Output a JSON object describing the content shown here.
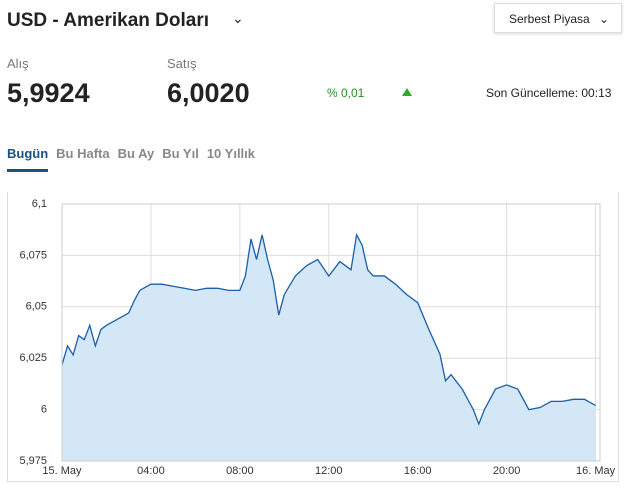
{
  "header": {
    "title": "USD - Amerikan Doları",
    "market": "Serbest Piyasa"
  },
  "quotes": {
    "buy_label": "Alış",
    "buy": "5,9924",
    "sell_label": "Satış",
    "sell": "6,0020",
    "change": "% 0,01",
    "updated": "Son Güncelleme: 00:13"
  },
  "tabs": [
    "Bugün",
    "Bu Hafta",
    "Bu Ay",
    "Bu Yıl",
    "10 Yıllık"
  ],
  "chart_data": {
    "type": "area",
    "color": "#1a5fa8",
    "fill": "#d4e7f6",
    "grid": true,
    "x": [
      0,
      0.25,
      0.5,
      0.75,
      1,
      1.25,
      1.5,
      1.75,
      2,
      2.5,
      3,
      3.25,
      3.5,
      4,
      4.5,
      5,
      5.5,
      6,
      6.5,
      7,
      7.5,
      8,
      8.25,
      8.5,
      8.75,
      9,
      9.25,
      9.5,
      9.75,
      10,
      10.5,
      11,
      11.5,
      12,
      12.5,
      13,
      13.25,
      13.5,
      13.75,
      14,
      14.5,
      15,
      15.5,
      16,
      16.5,
      17,
      17.25,
      17.5,
      18,
      18.5,
      18.75,
      19,
      19.5,
      20,
      20.5,
      21,
      21.5,
      22,
      22.5,
      23,
      23.5,
      24
    ],
    "values": [
      6.0217,
      6.031,
      6.0266,
      6.036,
      6.034,
      6.041,
      6.031,
      6.039,
      6.041,
      6.044,
      6.047,
      6.053,
      6.058,
      6.061,
      6.061,
      6.06,
      6.059,
      6.058,
      6.059,
      6.059,
      6.058,
      6.058,
      6.065,
      6.083,
      6.073,
      6.085,
      6.073,
      6.063,
      6.046,
      6.056,
      6.065,
      6.07,
      6.073,
      6.065,
      6.072,
      6.068,
      6.085,
      6.08,
      6.068,
      6.065,
      6.065,
      6.061,
      6.056,
      6.052,
      6.039,
      6.027,
      6.014,
      6.017,
      6.01,
      6.0,
      5.993,
      6.0,
      6.01,
      6.012,
      6.01,
      6.0,
      6.001,
      6.004,
      6.004,
      6.005,
      6.005,
      6.002
    ],
    "xlim": [
      0,
      24.2
    ],
    "xticks": [
      {
        "value": 0,
        "label": "15. May"
      },
      {
        "value": 4,
        "label": "04:00"
      },
      {
        "value": 8,
        "label": "08:00"
      },
      {
        "value": 12,
        "label": "12:00"
      },
      {
        "value": 16,
        "label": "16:00"
      },
      {
        "value": 20,
        "label": "20:00"
      },
      {
        "value": 24,
        "label": "16. May"
      }
    ],
    "ylim": [
      5.975,
      6.1
    ],
    "yticks": [
      {
        "value": 5.975,
        "label": "5,975"
      },
      6,
      {
        "value": 6.025,
        "label": "6,025"
      },
      {
        "value": 6.05,
        "label": "6,05"
      },
      {
        "value": 6.075,
        "label": "6,075"
      },
      {
        "value": 6.1,
        "label": "6,1"
      }
    ]
  }
}
